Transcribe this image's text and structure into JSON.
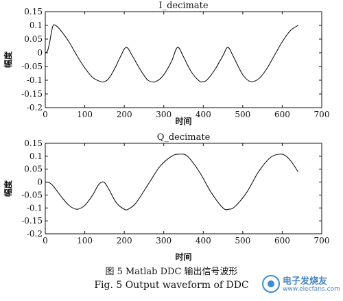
{
  "chart_data": [
    {
      "type": "line",
      "title": "I_decimate",
      "xlabel": "时间",
      "ylabel": "幅度",
      "xlim": [
        0,
        700
      ],
      "ylim": [
        -0.2,
        0.15
      ],
      "xticks": [
        0,
        100,
        200,
        300,
        400,
        500,
        600,
        700
      ],
      "yticks": [
        0.15,
        0.1,
        0.05,
        0,
        -0.05,
        -0.1,
        -0.15,
        -0.2
      ],
      "ytick_labels": [
        "0.15",
        "0.1",
        "0.05",
        "0",
        "-0.05",
        "-0.1",
        "-0.15",
        "-0.2"
      ],
      "grid": false,
      "series": [
        {
          "x": [
            0,
            5,
            10,
            15,
            20,
            28,
            40,
            60,
            80,
            100,
            120,
            140,
            150,
            160,
            175,
            190,
            205,
            220,
            240,
            260,
            280,
            300,
            320,
            335,
            350,
            370,
            390,
            400,
            410,
            430,
            450,
            462,
            475,
            500,
            520,
            540,
            560,
            580,
            600,
            620,
            640
          ],
          "y": [
            0,
            0.005,
            0.03,
            0.07,
            0.1,
            0.098,
            0.08,
            0.04,
            -0.01,
            -0.055,
            -0.09,
            -0.105,
            -0.105,
            -0.095,
            -0.06,
            -0.015,
            0.02,
            -0.01,
            -0.06,
            -0.1,
            -0.105,
            -0.08,
            -0.03,
            0.02,
            -0.015,
            -0.07,
            -0.103,
            -0.105,
            -0.098,
            -0.06,
            -0.01,
            0.02,
            -0.01,
            -0.08,
            -0.105,
            -0.095,
            -0.06,
            -0.01,
            0.04,
            0.08,
            0.1
          ]
        }
      ]
    },
    {
      "type": "line",
      "title": "Q_decimate",
      "xlabel": "时间",
      "ylabel": "幅度",
      "xlim": [
        0,
        700
      ],
      "ylim": [
        -0.2,
        0.15
      ],
      "xticks": [
        0,
        100,
        200,
        300,
        400,
        500,
        600,
        700
      ],
      "yticks": [
        0.15,
        0.1,
        0.05,
        0,
        -0.05,
        -0.1,
        -0.15,
        -0.2
      ],
      "ytick_labels": [
        "0.15",
        "0.1",
        "0.05",
        "0",
        "-0.05",
        "-0.1",
        "-0.15",
        "-0.2"
      ],
      "grid": false,
      "series": [
        {
          "x": [
            0,
            10,
            20,
            40,
            60,
            80,
            100,
            120,
            135,
            148,
            160,
            180,
            200,
            210,
            230,
            260,
            290,
            320,
            340,
            360,
            390,
            420,
            450,
            465,
            480,
            510,
            540,
            570,
            595,
            610,
            625,
            640
          ],
          "y": [
            0,
            -0.002,
            -0.015,
            -0.055,
            -0.09,
            -0.105,
            -0.09,
            -0.05,
            -0.01,
            0.0,
            -0.025,
            -0.08,
            -0.105,
            -0.105,
            -0.08,
            -0.01,
            0.06,
            0.1,
            0.108,
            0.1,
            0.04,
            -0.04,
            -0.1,
            -0.105,
            -0.095,
            -0.04,
            0.04,
            0.095,
            0.108,
            0.1,
            0.075,
            0.04
          ]
        }
      ]
    }
  ],
  "caption_cn": "图 5   Matlab DDC 输出信号波形",
  "caption_en": "Fig. 5   Output waveform of DDC",
  "watermark": {
    "text": "电子发烧友",
    "url": "www.elecfans.com"
  }
}
